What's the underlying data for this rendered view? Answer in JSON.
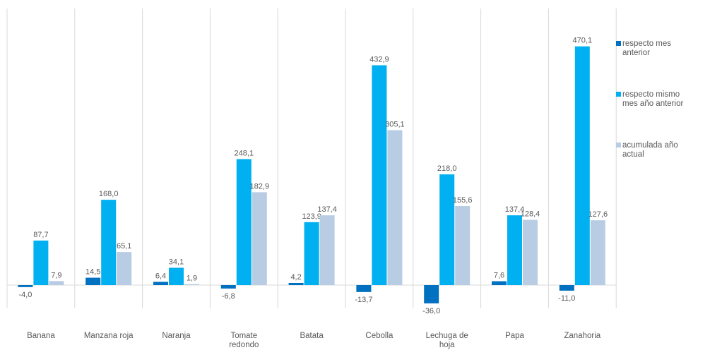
{
  "chart_data": {
    "type": "bar",
    "categories": [
      "Banana",
      "Manzana roja",
      "Naranja",
      "Tomate redondo",
      "Batata",
      "Cebolla",
      "Lechuga de hoja",
      "Papa",
      "Zanahoria"
    ],
    "series": [
      {
        "name": "respecto mes anterior",
        "color": "#0070c0",
        "values": [
          -4.0,
          14.5,
          6.4,
          -6.8,
          4.2,
          -13.7,
          -36.0,
          7.6,
          -11.0
        ],
        "labels": [
          "-4,0",
          "14,5",
          "6,4",
          "-6,8",
          "4,2",
          "-13,7",
          "-36,0",
          "7,6",
          "-11,0"
        ]
      },
      {
        "name": "respecto mismo mes año anterior",
        "color": "#00b0f0",
        "values": [
          87.7,
          168.0,
          34.1,
          248.1,
          123.9,
          432.9,
          218.0,
          137.4,
          470.1
        ],
        "labels": [
          "87,7",
          "168,0",
          "34,1",
          "248,1",
          "123,9",
          "432,9",
          "218,0",
          "137,4",
          "470,1"
        ]
      },
      {
        "name": "acumulada año actual",
        "color": "#b8cce4",
        "values": [
          7.9,
          65.1,
          1.9,
          182.9,
          137.4,
          305.1,
          155.6,
          128.4,
          127.6
        ],
        "labels": [
          "7,9",
          "65,1",
          "1,9",
          "182,9",
          "137,4",
          "305,1",
          "155,6",
          "128,4",
          "127,6"
        ]
      }
    ],
    "legend": {
      "position": "right",
      "entries": [
        {
          "line1": "respecto mes",
          "line2": "anterior"
        },
        {
          "line1": "respecto mismo",
          "line2": "mes año anterior"
        },
        {
          "line1": "acumulada año",
          "line2": "actual"
        }
      ]
    },
    "category_lines": [
      [
        "Banana"
      ],
      [
        "Manzana roja"
      ],
      [
        "Naranja"
      ],
      [
        "Tomate",
        "redondo"
      ],
      [
        "Batata"
      ],
      [
        "Cebolla"
      ],
      [
        "Lechuga de",
        "hoja"
      ],
      [
        "Papa"
      ],
      [
        "Zanahoria"
      ]
    ],
    "title": "",
    "xlabel": "",
    "ylabel": "",
    "ylim": [
      -45,
      500
    ],
    "grid": false
  }
}
